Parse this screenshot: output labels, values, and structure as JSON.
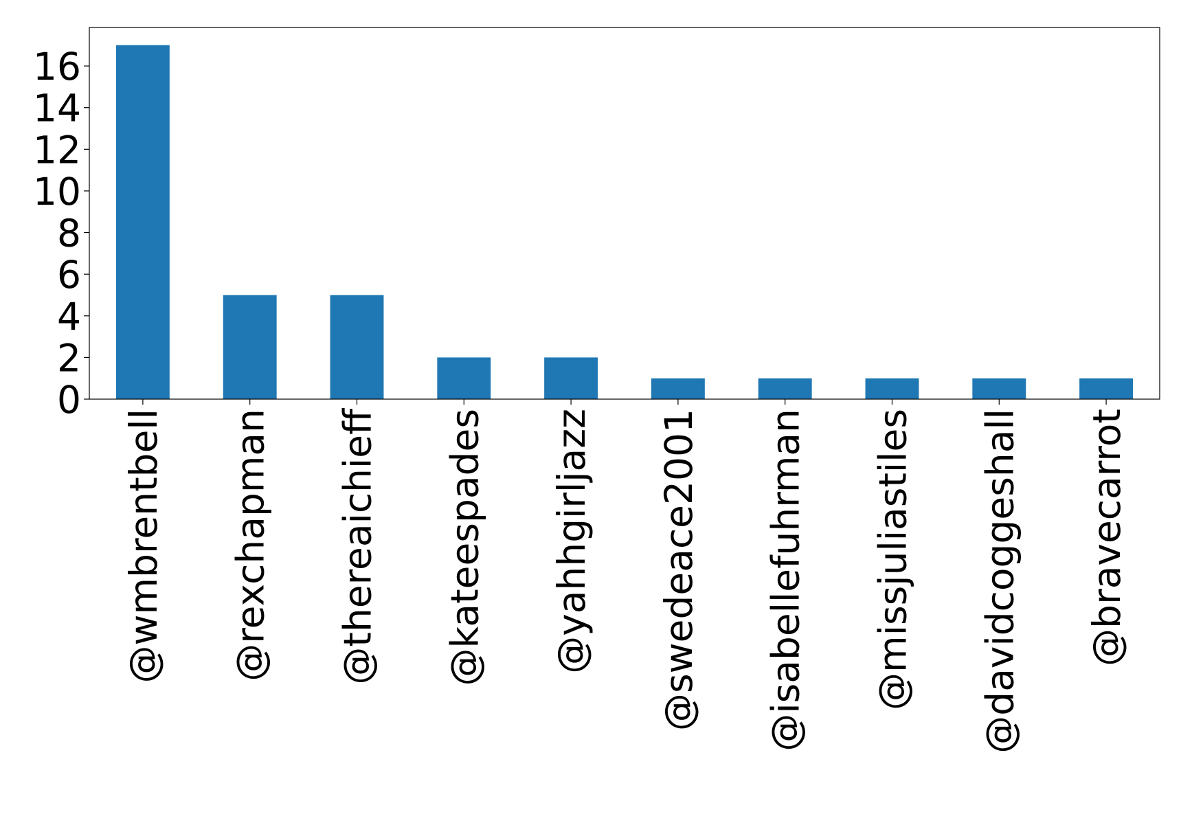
{
  "chart_data": {
    "type": "bar",
    "categories": [
      "@wmbrentbell",
      "@rexchapman",
      "@thereaichieff",
      "@kateespades",
      "@yahhgirljazz",
      "@swedeace2001",
      "@isabellefuhrman",
      "@missjuliastiles",
      "@davidcoggeshall",
      "@bravecarrot"
    ],
    "values": [
      17,
      5,
      5,
      2,
      2,
      1,
      1,
      1,
      1,
      1
    ],
    "color": "#1f77b4",
    "ylim": [
      0,
      17.85
    ],
    "yticks": [
      0,
      2,
      4,
      6,
      8,
      10,
      12,
      14,
      16
    ],
    "grid": false
  }
}
